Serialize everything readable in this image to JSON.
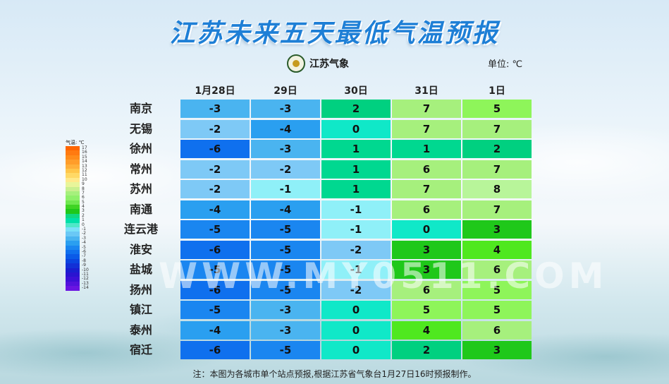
{
  "title": "江苏未来五天最低气温预报",
  "logo_text": "江苏气象",
  "unit_label": "单位: ℃",
  "columns": [
    "1月28日",
    "29日",
    "30日",
    "31日",
    "1日"
  ],
  "rows": [
    {
      "city": "南京",
      "values": [
        -3,
        -3,
        2,
        7,
        5
      ]
    },
    {
      "city": "无锡",
      "values": [
        -2,
        -4,
        0,
        7,
        7
      ]
    },
    {
      "city": "徐州",
      "values": [
        -6,
        -3,
        1,
        1,
        2
      ]
    },
    {
      "city": "常州",
      "values": [
        -2,
        -2,
        1,
        6,
        7
      ]
    },
    {
      "city": "苏州",
      "values": [
        -2,
        -1,
        1,
        7,
        8
      ]
    },
    {
      "city": "南通",
      "values": [
        -4,
        -4,
        -1,
        6,
        7
      ]
    },
    {
      "city": "连云港",
      "values": [
        -5,
        -5,
        -1,
        0,
        3
      ]
    },
    {
      "city": "淮安",
      "values": [
        -6,
        -5,
        -2,
        3,
        4
      ]
    },
    {
      "city": "盐城",
      "values": [
        -5,
        -5,
        -1,
        3,
        6
      ]
    },
    {
      "city": "扬州",
      "values": [
        -6,
        -5,
        -2,
        6,
        5
      ]
    },
    {
      "city": "镇江",
      "values": [
        -5,
        -3,
        0,
        5,
        5
      ]
    },
    {
      "city": "泰州",
      "values": [
        -4,
        -3,
        0,
        4,
        6
      ]
    },
    {
      "city": "宿迁",
      "values": [
        -6,
        -5,
        0,
        2,
        3
      ]
    }
  ],
  "legend": {
    "label": "气温: ℃",
    "ticks": [
      "17",
      "16",
      "15",
      "14",
      "13",
      "12",
      "11",
      "10",
      "9",
      "8",
      "7",
      "6",
      "5",
      "4",
      "3",
      "2",
      "1",
      "0",
      "-1",
      "-2",
      "-3",
      "-4",
      "-5",
      "-6",
      "-7",
      "-8",
      "-9",
      "-10",
      "-11",
      "-12",
      "-13",
      "-14"
    ],
    "colors": [
      "#ff6600",
      "#ff7a10",
      "#ff8c1a",
      "#ff9d2a",
      "#ffb03a",
      "#ffc64a",
      "#ffd966",
      "#ffe98a",
      "#e8f59a",
      "#c9f08f",
      "#a6f07d",
      "#8ef06a",
      "#6fe84f",
      "#3fd424",
      "#1fc81a",
      "#10d880",
      "#00e0a8",
      "#4fe8c8",
      "#7ae0f8",
      "#6ac8f5",
      "#4ab4f0",
      "#2a9ff0",
      "#1a86f0",
      "#0f70ee",
      "#0a5ae8",
      "#0a44e0",
      "#1230d6",
      "#1a1ed0",
      "#2a14d0",
      "#3c10d6",
      "#5212dc",
      "#6a14e2"
    ]
  },
  "watermark": "WWW.MY0511.COM",
  "note": "注：本图为各城市单个站点预报,根据江苏省气象台1月27日16时预报制作。"
}
